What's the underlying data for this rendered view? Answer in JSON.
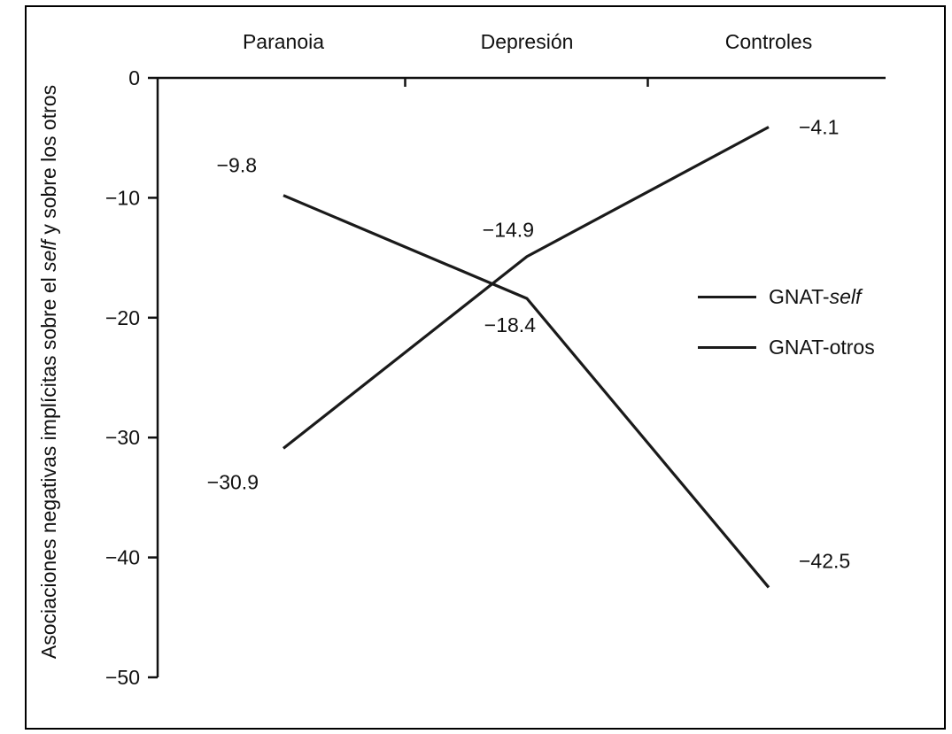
{
  "figure": {
    "y_axis_title": {
      "prefix": "Asociaciones negativas implícitas sobre el ",
      "italic": "self",
      "suffix": " y sobre los otros"
    }
  },
  "legend": {
    "items": [
      {
        "prefix": "GNAT-",
        "italic": "self"
      },
      {
        "prefix": "GNAT-otros",
        "italic": ""
      }
    ]
  },
  "chart_data": {
    "type": "line",
    "title": "",
    "categories": [
      "Paranoia",
      "Depresión",
      "Controles"
    ],
    "series": [
      {
        "name": "GNAT-self",
        "values": [
          -9.8,
          -18.4,
          -42.5
        ]
      },
      {
        "name": "GNAT-otros",
        "values": [
          -30.9,
          -14.9,
          -4.1
        ]
      }
    ],
    "ylim": [
      -50,
      0
    ],
    "yticks": [
      0,
      -10,
      -20,
      -30,
      -40,
      -50
    ],
    "ylabel": "Asociaciones negativas implícitas sobre el self y sobre los otros",
    "xlabel": "",
    "grid": false,
    "legend_position": "right-middle",
    "line_color": "#1a1a1a",
    "data_labels_shown": true
  }
}
